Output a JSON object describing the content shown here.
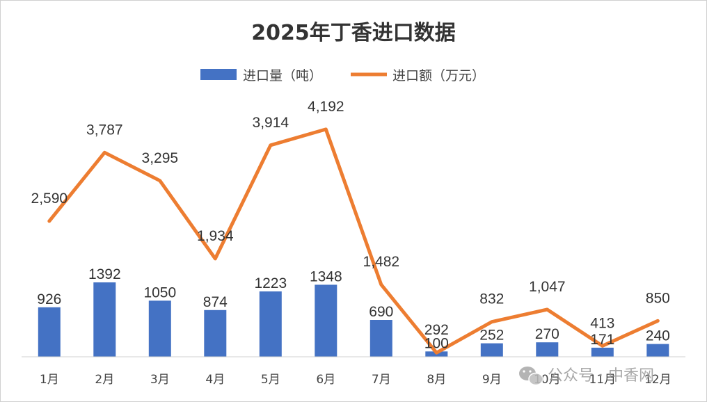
{
  "chart_data": {
    "type": "bar",
    "title": "2025年丁香进口数据",
    "categories": [
      "1月",
      "2月",
      "3月",
      "4月",
      "5月",
      "6月",
      "7月",
      "8月",
      "9月",
      "10月",
      "11月",
      "12月"
    ],
    "series": [
      {
        "name": "进口量（吨）",
        "type": "bar",
        "color": "#4472c4",
        "values": [
          926,
          1392,
          1050,
          874,
          1223,
          1348,
          690,
          100,
          252,
          270,
          171,
          240
        ],
        "labels": [
          "926",
          "1392",
          "1050",
          "874",
          "1223",
          "1348",
          "690",
          "100",
          "252",
          "270",
          "171",
          "240"
        ]
      },
      {
        "name": "进口额（万元）",
        "type": "line",
        "color": "#ed7d31",
        "values": [
          2590,
          3787,
          3295,
          1934,
          3914,
          4192,
          1482,
          292,
          832,
          1047,
          413,
          850
        ],
        "labels": [
          "2,590",
          "3,787",
          "3,295",
          "1,934",
          "3,914",
          "4,192",
          "1,482",
          "292",
          "832",
          "1,047",
          "413",
          "850"
        ]
      }
    ],
    "bar_axis_max": 3000,
    "line_axis_max": 4350,
    "legend_position": "top-center",
    "grid": false
  },
  "watermark": {
    "text": "公众号 · 中香网",
    "icon": "wechat-icon"
  }
}
